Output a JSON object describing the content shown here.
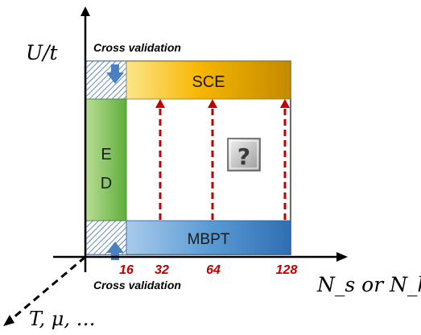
{
  "axes": {
    "y_label": "U/t",
    "x_label": "N_s or N_k",
    "z_label": "T, μ, …"
  },
  "methods": {
    "sce": "SCE",
    "mbpt": "MBPT",
    "ed_line1": "E",
    "ed_line2": "D"
  },
  "cross_validation": {
    "top": "Cross validation",
    "bottom": "Cross validation"
  },
  "ticks": [
    "16",
    "32",
    "64",
    "128"
  ],
  "unknown_symbol": "?",
  "colors": {
    "sce_gradient": [
      "#fde68a",
      "#f7b500",
      "#c28a00"
    ],
    "mbpt_gradient": [
      "#a8cbeb",
      "#5b9bd5",
      "#2f6fb3"
    ],
    "ed_gradient": [
      "#b9dd95",
      "#5fae3b"
    ],
    "arrow_red": "#c00000",
    "cv_arrow": "#4a7fc1",
    "tick_red": "#c00000"
  }
}
